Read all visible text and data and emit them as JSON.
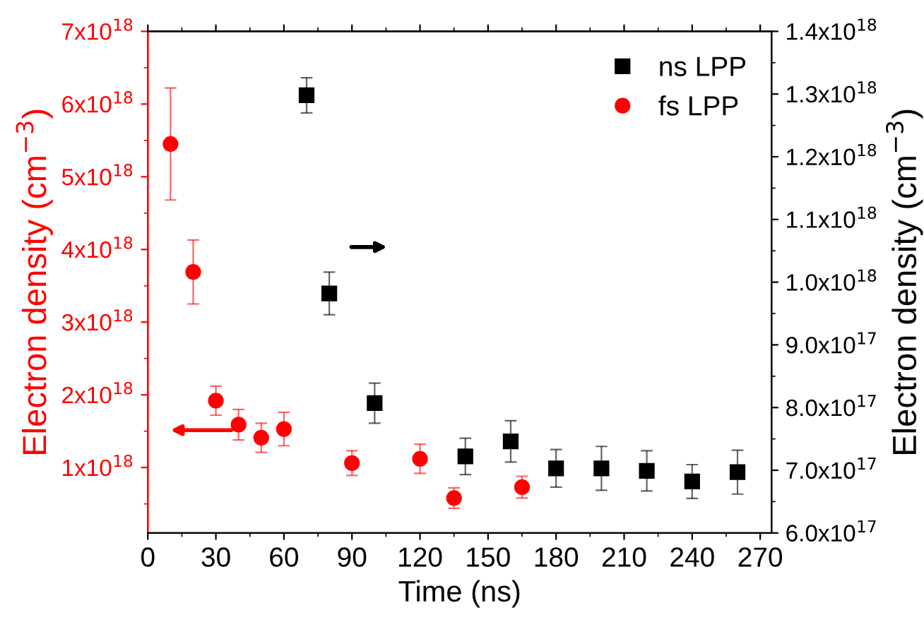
{
  "chart_data": {
    "type": "scatter",
    "xlabel": "Time (ns)",
    "ylabel": "Electron density (cm$^{−3}$)",
    "y2label": "Electron density (cm$^{−3}$)",
    "xlim": [
      0,
      275
    ],
    "xticks": [
      0,
      30,
      60,
      90,
      120,
      150,
      180,
      210,
      240,
      270
    ],
    "ylim": [
      1e+17,
      7e+18
    ],
    "yticks": [
      {
        "value": 1e+18,
        "label": "1x10$^{18}$"
      },
      {
        "value": 2e+18,
        "label": "2x10$^{18}$"
      },
      {
        "value": 3e+18,
        "label": "3x10$^{18}$"
      },
      {
        "value": 4e+18,
        "label": "4x10$^{18}$"
      },
      {
        "value": 5e+18,
        "label": "5x10$^{18}$"
      },
      {
        "value": 6e+18,
        "label": "6x10$^{18}$"
      },
      {
        "value": 7e+18,
        "label": "7x10$^{18}$"
      }
    ],
    "y2lim": [
      6e+17,
      1.4e+18
    ],
    "y2ticks": [
      {
        "value": 6e+17,
        "label": "6.0x10$^{17}$"
      },
      {
        "value": 7e+17,
        "label": "7.0x10$^{17}$"
      },
      {
        "value": 8e+17,
        "label": "8.0x10$^{17}$"
      },
      {
        "value": 9e+17,
        "label": "9.0x10$^{17}$"
      },
      {
        "value": 1e+18,
        "label": "1.0x10$^{18}$"
      },
      {
        "value": 1.1e+18,
        "label": "1.1x10$^{18}$"
      },
      {
        "value": 1.2e+18,
        "label": "1.2x10$^{18}$"
      },
      {
        "value": 1.3e+18,
        "label": "1.3x10$^{18}$"
      },
      {
        "value": 1.4e+18,
        "label": "1.4x10$^{18}$"
      }
    ],
    "legend": "top right",
    "grid": false,
    "series": [
      {
        "name": "ns LPP",
        "color": "#000000",
        "marker": "square",
        "axis": "y2",
        "x": [
          70,
          80,
          100,
          140,
          160,
          180,
          200,
          220,
          240,
          260
        ],
        "values": [
          1.298e+18,
          9.82e+17,
          8.07e+17,
          7.22e+17,
          7.46e+17,
          7.03e+17,
          7.03e+17,
          6.99e+17,
          6.82e+17,
          6.97e+17
        ],
        "errors": [
          2.8e+16,
          3.4e+16,
          3.2e+16,
          2.9e+16,
          3.3e+16,
          3e+16,
          3.5e+16,
          3.2e+16,
          2.7e+16,
          3.5e+16
        ]
      },
      {
        "name": "fs LPP",
        "color": "#ff0000",
        "marker": "circle",
        "axis": "y",
        "x": [
          10,
          20,
          30,
          40,
          50,
          60,
          90,
          120,
          135,
          165
        ],
        "values": [
          5.45e+18,
          3.69e+18,
          1.92e+18,
          1.59e+18,
          1.41e+18,
          1.53e+18,
          1.06e+18,
          1.12e+18,
          5.8e+17,
          7.3e+17
        ],
        "errors": [
          7.7e+17,
          4.4e+17,
          2e+17,
          2.1e+17,
          2e+17,
          2.3e+17,
          1.7e+17,
          2e+17,
          1.4e+17,
          1.5e+17
        ]
      }
    ]
  }
}
